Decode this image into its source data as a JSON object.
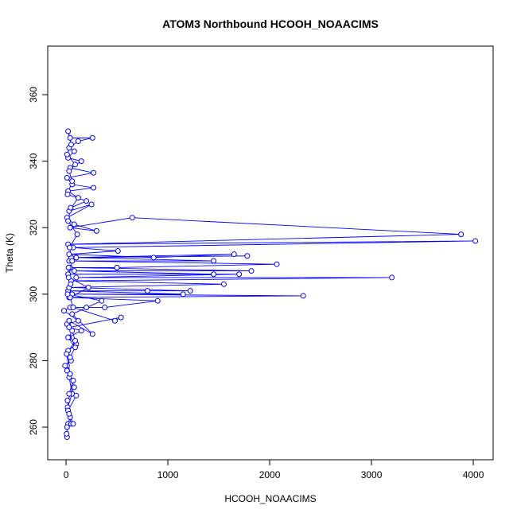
{
  "chart_data": {
    "type": "line",
    "title": "ATOM3 Northbound HCOOH_NOAACIMS",
    "x_label": "HCOOH_NOAACIMS",
    "y_label": "Theta (K)",
    "x": [
      10,
      5,
      20,
      40,
      15,
      60,
      30,
      10,
      -10,
      50,
      20,
      100,
      30,
      60,
      10,
      120,
      -20,
      40,
      200,
      380,
      900,
      30,
      2330,
      60,
      1150,
      20,
      800,
      1220,
      30,
      1550,
      50,
      3200,
      100,
      1700,
      20,
      1450,
      80,
      1820,
      40,
      500,
      2070,
      30,
      1450,
      100,
      1780,
      50,
      1650,
      860,
      30,
      510,
      70,
      4020,
      20,
      3880,
      650,
      40,
      300,
      80,
      10,
      250,
      30,
      120,
      20,
      270,
      60,
      10,
      270,
      40,
      150,
      20,
      80,
      30,
      120,
      260,
      40,
      20,
      50,
      10,
      90,
      30,
      60,
      15,
      200,
      45,
      20,
      110,
      35,
      60,
      25,
      220,
      40,
      70,
      480,
      540,
      30,
      150,
      20,
      90,
      40,
      10,
      70,
      30,
      100,
      20,
      50,
      10,
      70,
      30,
      15,
      80,
      40,
      5,
      90,
      30,
      260,
      60,
      350,
      15,
      45,
      25
    ],
    "values": [
      257,
      258,
      261,
      263,
      266,
      270,
      275,
      278.5,
      278.5,
      280,
      283,
      285,
      287,
      289,
      291,
      292,
      295,
      296,
      296,
      296,
      298,
      299,
      299.5,
      300,
      300,
      301,
      301,
      301,
      302,
      303,
      304,
      305,
      305,
      306,
      306,
      306,
      307,
      307,
      308,
      308,
      309,
      310,
      310,
      311,
      311.5,
      311,
      312,
      311,
      312,
      313,
      314,
      316,
      315,
      318,
      323,
      320,
      319,
      321,
      323,
      327,
      325,
      329,
      331,
      332,
      333,
      335,
      336.5,
      338,
      340,
      341,
      343,
      344,
      346,
      347,
      347,
      349,
      345,
      342,
      339,
      337,
      334,
      330,
      328,
      326,
      322,
      318,
      314,
      310,
      305,
      302,
      299,
      296,
      292,
      293,
      290,
      289,
      287,
      284,
      281,
      277,
      274,
      270,
      269.5,
      265,
      261,
      260,
      261,
      264,
      268,
      272,
      276,
      282,
      286,
      292,
      288,
      294,
      298,
      300,
      303,
      308
    ],
    "color": "#0000ff",
    "xlim": [
      -180,
      4195
    ],
    "ylim": [
      250.2,
      374.6
    ],
    "xticks": [
      0,
      1000,
      2000,
      3000,
      4000
    ],
    "yticks": [
      260,
      280,
      300,
      320,
      340,
      360
    ]
  }
}
